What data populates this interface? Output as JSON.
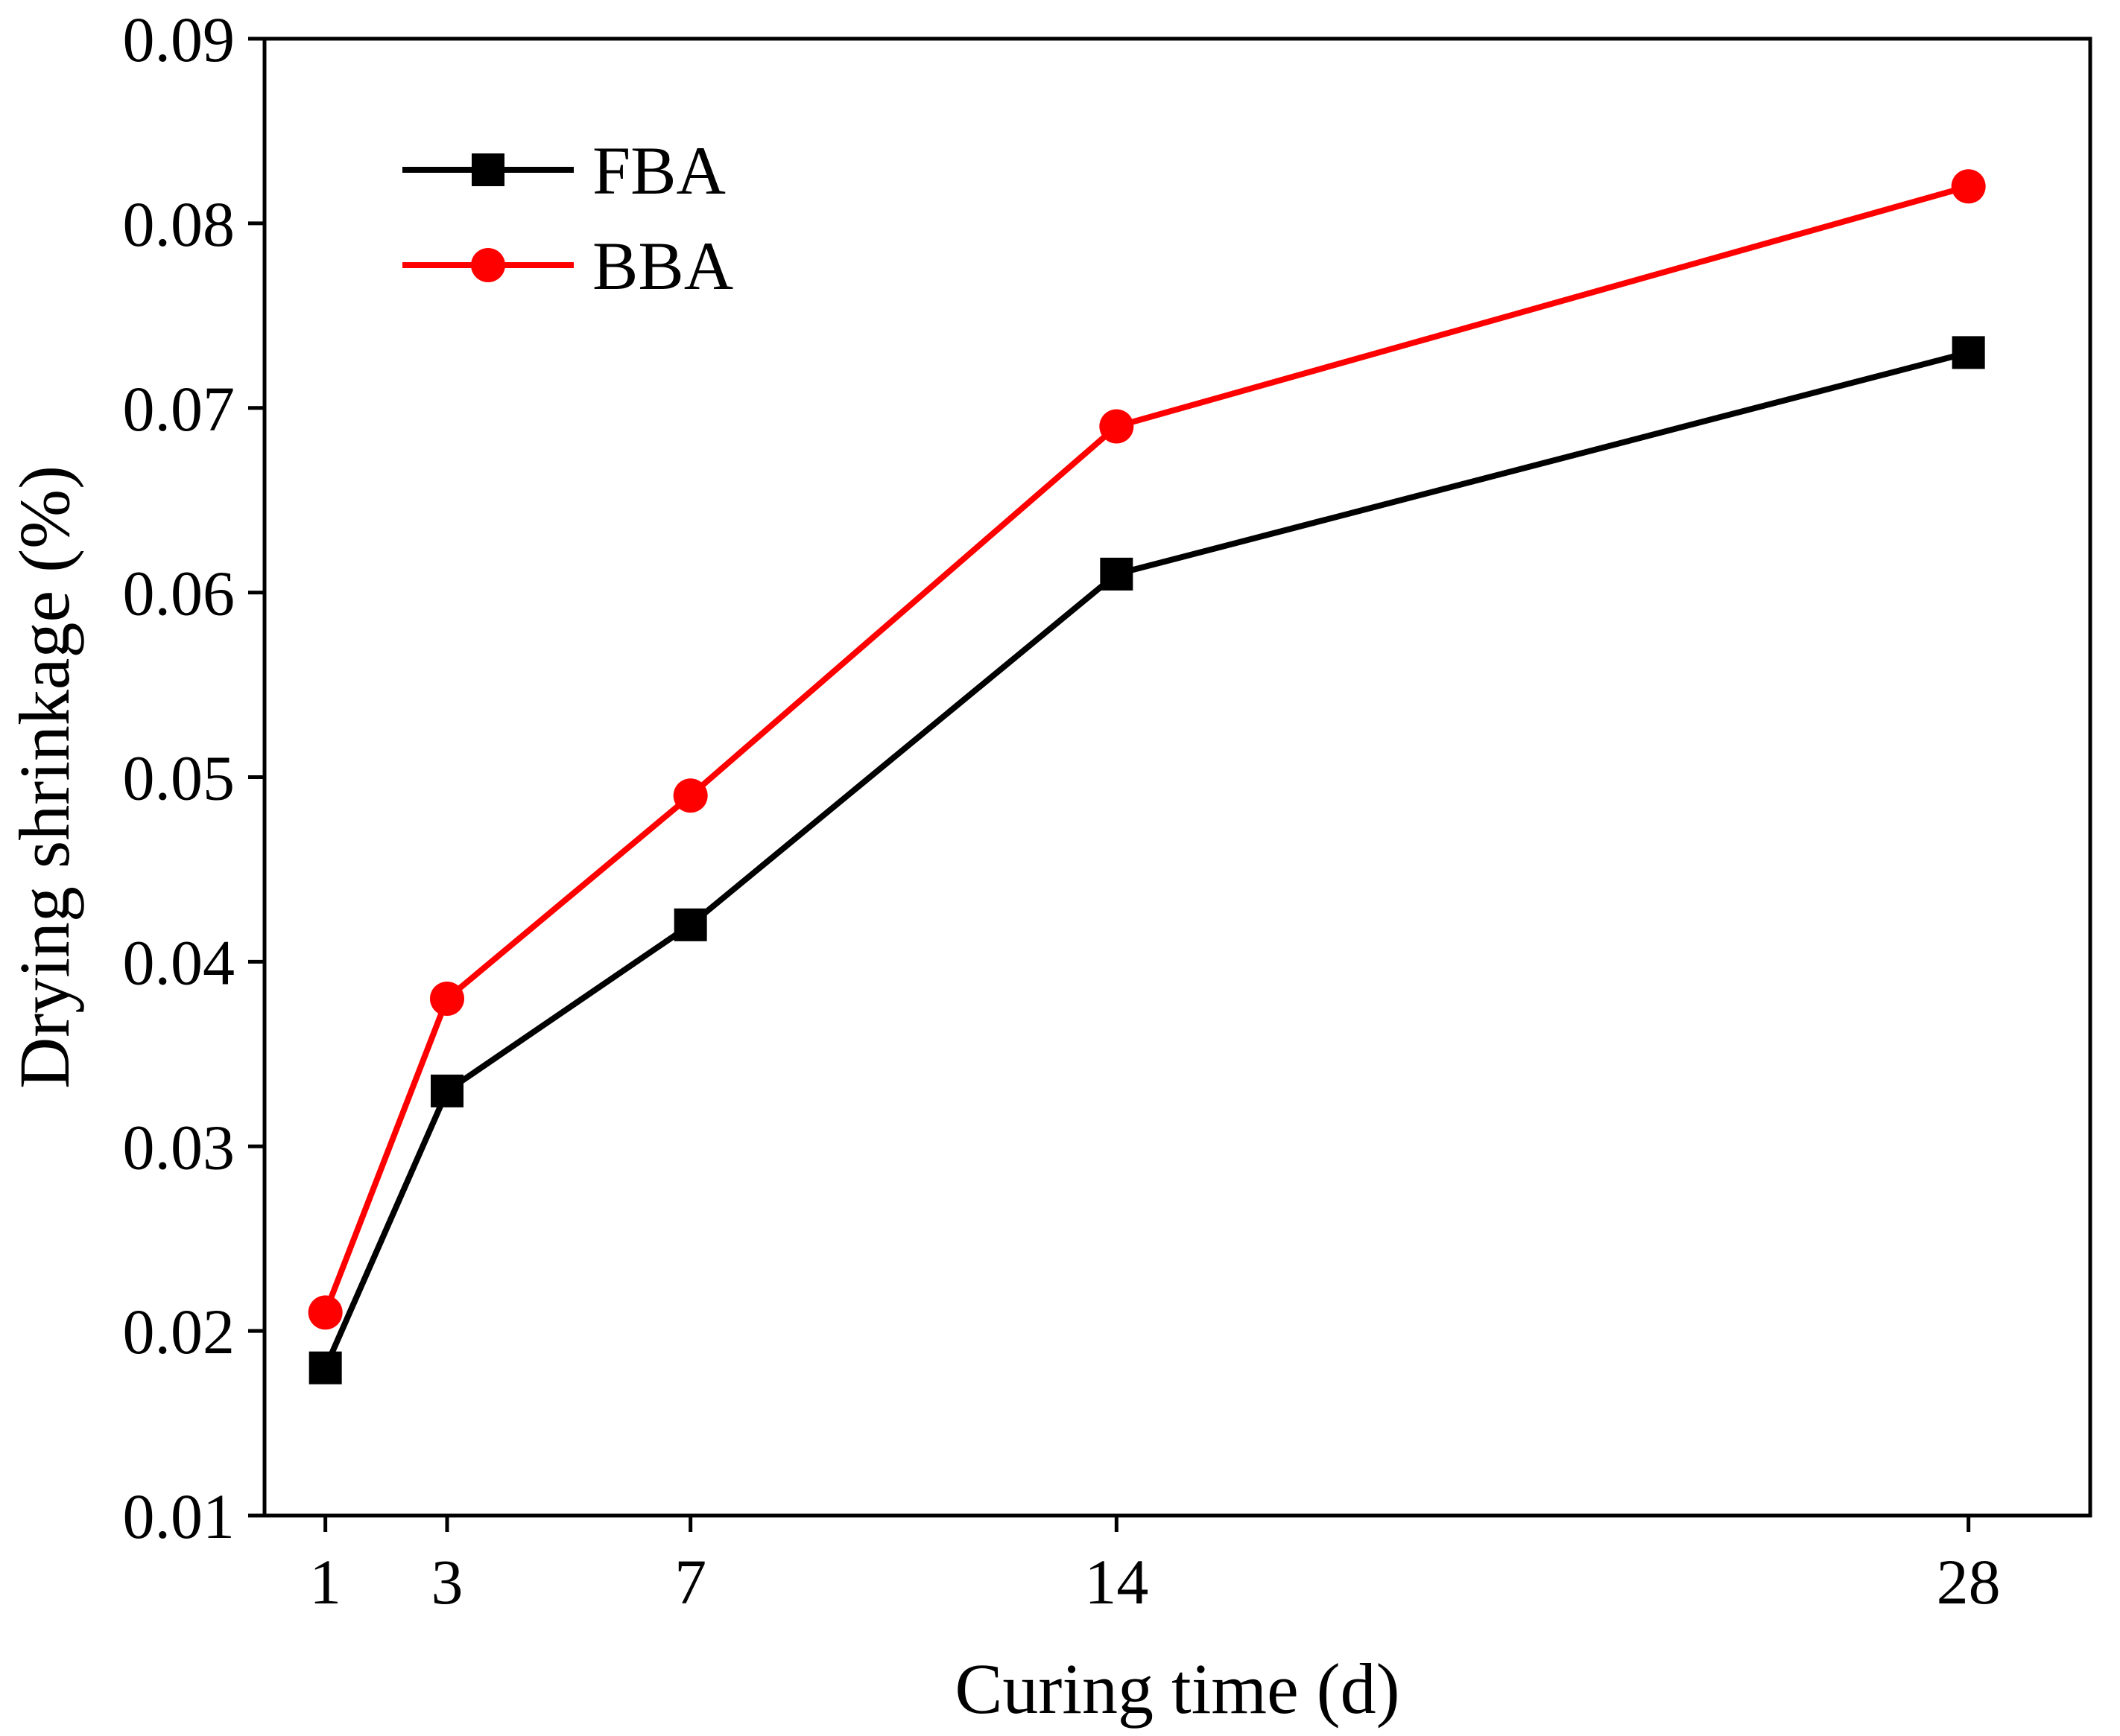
{
  "chart_data": {
    "type": "line",
    "title": "",
    "xlabel": "Curing time (d)",
    "ylabel": "Drying shrinkage (%)",
    "x": [
      1,
      3,
      7,
      14,
      28
    ],
    "x_tick_labels": [
      "1",
      "3",
      "7",
      "14",
      "28"
    ],
    "xlim": [
      0,
      30
    ],
    "ylim": [
      0.01,
      0.09
    ],
    "y_ticks": [
      0.01,
      0.02,
      0.03,
      0.04,
      0.05,
      0.06,
      0.07,
      0.08,
      0.09
    ],
    "y_tick_labels": [
      "0.01",
      "0.02",
      "0.03",
      "0.04",
      "0.05",
      "0.06",
      "0.07",
      "0.08",
      "0.09"
    ],
    "grid": false,
    "legend_position": "top-left",
    "series": [
      {
        "name": "FBA",
        "values": [
          0.018,
          0.033,
          0.042,
          0.061,
          0.073
        ],
        "color": "#000000",
        "marker": "square"
      },
      {
        "name": "BBA",
        "values": [
          0.021,
          0.038,
          0.049,
          0.069,
          0.082
        ],
        "color": "#ff0000",
        "marker": "circle"
      }
    ]
  }
}
